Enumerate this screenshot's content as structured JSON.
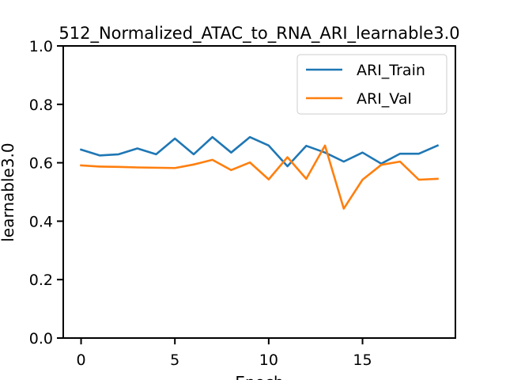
{
  "chart_data": {
    "type": "line",
    "title": "512_Normalized_ATAC_to_RNA_ARI_learnable3.0",
    "xlabel": "Epoch",
    "ylabel": "learnable3.0",
    "xlim": [
      -0.95,
      19.95
    ],
    "ylim": [
      0.0,
      1.0
    ],
    "xticks": [
      0,
      5,
      10,
      15
    ],
    "yticks": [
      0.0,
      0.2,
      0.4,
      0.6,
      0.8,
      1.0
    ],
    "xtick_labels": [
      "0",
      "5",
      "10",
      "15"
    ],
    "ytick_labels": [
      "0.0",
      "0.2",
      "0.4",
      "0.6",
      "0.8",
      "1.0"
    ],
    "grid": false,
    "legend_position": "top-right",
    "x": [
      0,
      1,
      2,
      3,
      4,
      5,
      6,
      7,
      8,
      9,
      10,
      11,
      12,
      13,
      14,
      15,
      16,
      17,
      18,
      19
    ],
    "series": [
      {
        "name": "ARI_Train",
        "color": "#1f77b4",
        "values": [
          0.645,
          0.625,
          0.629,
          0.649,
          0.629,
          0.683,
          0.629,
          0.688,
          0.635,
          0.688,
          0.659,
          0.588,
          0.658,
          0.635,
          0.604,
          0.635,
          0.597,
          0.631,
          0.631,
          0.659
        ]
      },
      {
        "name": "ARI_Val",
        "color": "#ff7f0e",
        "values": [
          0.591,
          0.587,
          0.586,
          0.584,
          0.583,
          0.582,
          0.594,
          0.61,
          0.575,
          0.601,
          0.543,
          0.619,
          0.545,
          0.659,
          0.443,
          0.542,
          0.593,
          0.604,
          0.542,
          0.545
        ]
      }
    ]
  }
}
